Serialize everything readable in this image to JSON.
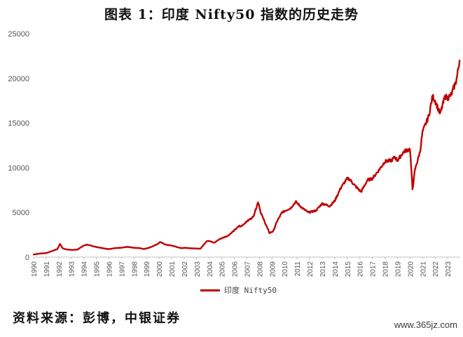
{
  "title": "图表 1：印度 Nifty50 指数的历史走势",
  "source": "资料来源：彭博，中银证券",
  "watermark": "www.365jz.com",
  "colors": {
    "series": "#c00000",
    "axis": "#bfbfbf",
    "tick_text": "#555555"
  },
  "chart_data": {
    "type": "line",
    "title": "图表 1：印度 Nifty50 指数的历史走势",
    "xlabel": "",
    "ylabel": "",
    "ylim": [
      0,
      25000
    ],
    "yticks": [
      "0",
      "5000",
      "10000",
      "15000",
      "20000",
      "25000"
    ],
    "xticks": [
      "1990",
      "1991",
      "1992",
      "1993",
      "1994",
      "1995",
      "1996",
      "1997",
      "1998",
      "1999",
      "2000",
      "2001",
      "2002",
      "2003",
      "2004",
      "2005",
      "2006",
      "2007",
      "2008",
      "2009",
      "2010",
      "2011",
      "2012",
      "2013",
      "2014",
      "2015",
      "2016",
      "2017",
      "2018",
      "2019",
      "2020",
      "2021",
      "2022",
      "2023"
    ],
    "legend": "bottom-center",
    "grid": false,
    "series": [
      {
        "name": "印度 Nifty50",
        "x": [
          1990.0,
          1990.5,
          1991.0,
          1991.5,
          1991.9,
          1992.1,
          1992.3,
          1992.5,
          1993.0,
          1993.5,
          1994.0,
          1994.3,
          1994.8,
          1995.5,
          1996.0,
          1996.5,
          1997.0,
          1997.5,
          1998.0,
          1998.5,
          1998.8,
          1999.3,
          1999.8,
          2000.1,
          2000.5,
          2001.0,
          2001.5,
          2001.8,
          2002.0,
          2002.5,
          2003.0,
          2003.3,
          2003.8,
          2004.1,
          2004.4,
          2004.8,
          2005.5,
          2006.0,
          2006.4,
          2006.5,
          2007.0,
          2007.5,
          2007.9,
          2008.1,
          2008.4,
          2008.8,
          2009.1,
          2009.4,
          2009.8,
          2010.5,
          2010.9,
          2011.4,
          2011.9,
          2012.5,
          2013.0,
          2013.6,
          2014.0,
          2014.5,
          2015.0,
          2015.2,
          2015.6,
          2016.1,
          2016.6,
          2017.0,
          2017.5,
          2018.0,
          2018.5,
          2018.8,
          2019.0,
          2019.5,
          2020.0,
          2020.2,
          2020.4,
          2020.8,
          2021.0,
          2021.5,
          2021.8,
          2022.0,
          2022.4,
          2022.8,
          2023.0,
          2023.3,
          2023.7,
          2023.95
        ],
        "y": [
          300,
          400,
          450,
          700,
          900,
          1500,
          1000,
          900,
          800,
          850,
          1300,
          1400,
          1200,
          1000,
          900,
          1000,
          1050,
          1150,
          1050,
          1000,
          900,
          1100,
          1400,
          1700,
          1400,
          1300,
          1100,
          1000,
          1050,
          1000,
          950,
          950,
          1800,
          1800,
          1600,
          2000,
          2400,
          3000,
          3500,
          3400,
          4000,
          4500,
          6200,
          5000,
          4000,
          2700,
          2900,
          4000,
          5000,
          5500,
          6200,
          5500,
          5000,
          5200,
          6000,
          5700,
          6300,
          7800,
          8800,
          8700,
          8000,
          7300,
          8600,
          8800,
          9700,
          10700,
          10800,
          11200,
          10800,
          11800,
          12100,
          7600,
          9800,
          11800,
          14000,
          15800,
          18000,
          17500,
          16000,
          18000,
          17800,
          18200,
          19800,
          22000
        ]
      }
    ]
  }
}
